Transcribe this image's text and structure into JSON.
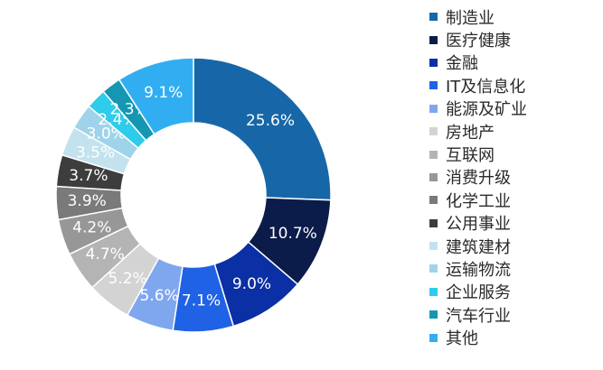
{
  "chart_data": {
    "type": "pie",
    "donut": true,
    "legend_position": "right",
    "categories": [
      "制造业",
      "医疗健康",
      "金融",
      "IT及信息化",
      "能源及矿业",
      "房地产",
      "互联网",
      "消费升级",
      "化学工业",
      "公用事业",
      "建筑建材",
      "运输物流",
      "企业服务",
      "汽车行业",
      "其他"
    ],
    "values": [
      25.6,
      10.7,
      9.0,
      7.1,
      5.6,
      5.2,
      4.7,
      4.2,
      3.9,
      3.7,
      3.5,
      3.0,
      2.4,
      2.3,
      9.1
    ],
    "value_labels": [
      "25.6%",
      "10.7%",
      "9.0%",
      "7.1%",
      "5.6%",
      "5.2%",
      "4.7%",
      "4.2%",
      "3.9%",
      "3.7%",
      "3.5%",
      "3.0%",
      "2.4%",
      "2.3%",
      "9.1%"
    ],
    "colors": [
      "#1767a8",
      "#0b1b4a",
      "#0b2fa4",
      "#1f62e6",
      "#7fa7ee",
      "#d3d3d3",
      "#b4b4b4",
      "#979797",
      "#7a7a7a",
      "#3d3d3d",
      "#c2e2ee",
      "#9fd3ea",
      "#2ecbeb",
      "#1596b1",
      "#31aef2"
    ]
  }
}
